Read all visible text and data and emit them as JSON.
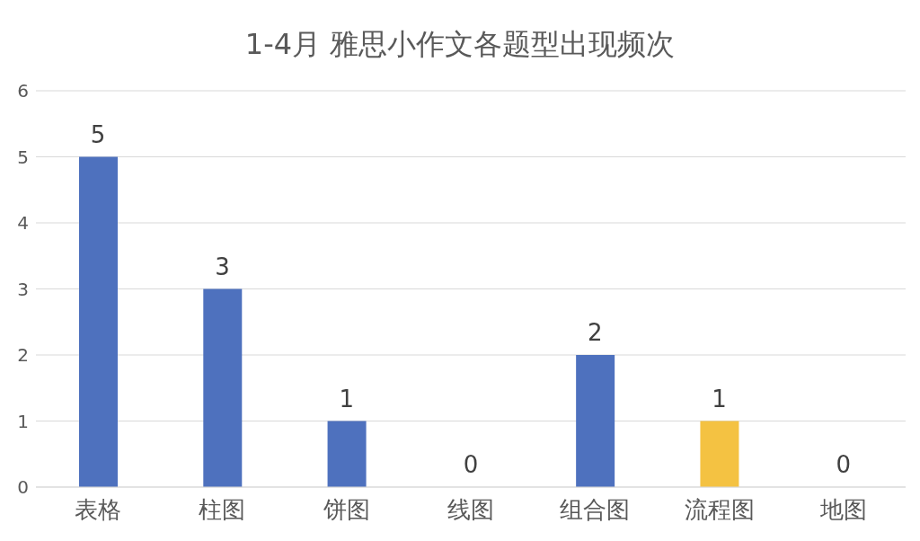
{
  "chart_data": {
    "type": "bar",
    "title": "1-4月 雅思小作文各题型出现频次",
    "categories": [
      "表格",
      "柱图",
      "饼图",
      "线图",
      "组合图",
      "流程图",
      "地图"
    ],
    "values": [
      5,
      3,
      1,
      0,
      2,
      1,
      0
    ],
    "colors": [
      "#4e71be",
      "#4e71be",
      "#4e71be",
      "#4e71be",
      "#4e71be",
      "#f4c242",
      "#4e71be"
    ],
    "ylim": [
      0,
      6
    ],
    "yticks": [
      0,
      1,
      2,
      3,
      4,
      5,
      6
    ],
    "grid": "y",
    "data_labels": true
  }
}
